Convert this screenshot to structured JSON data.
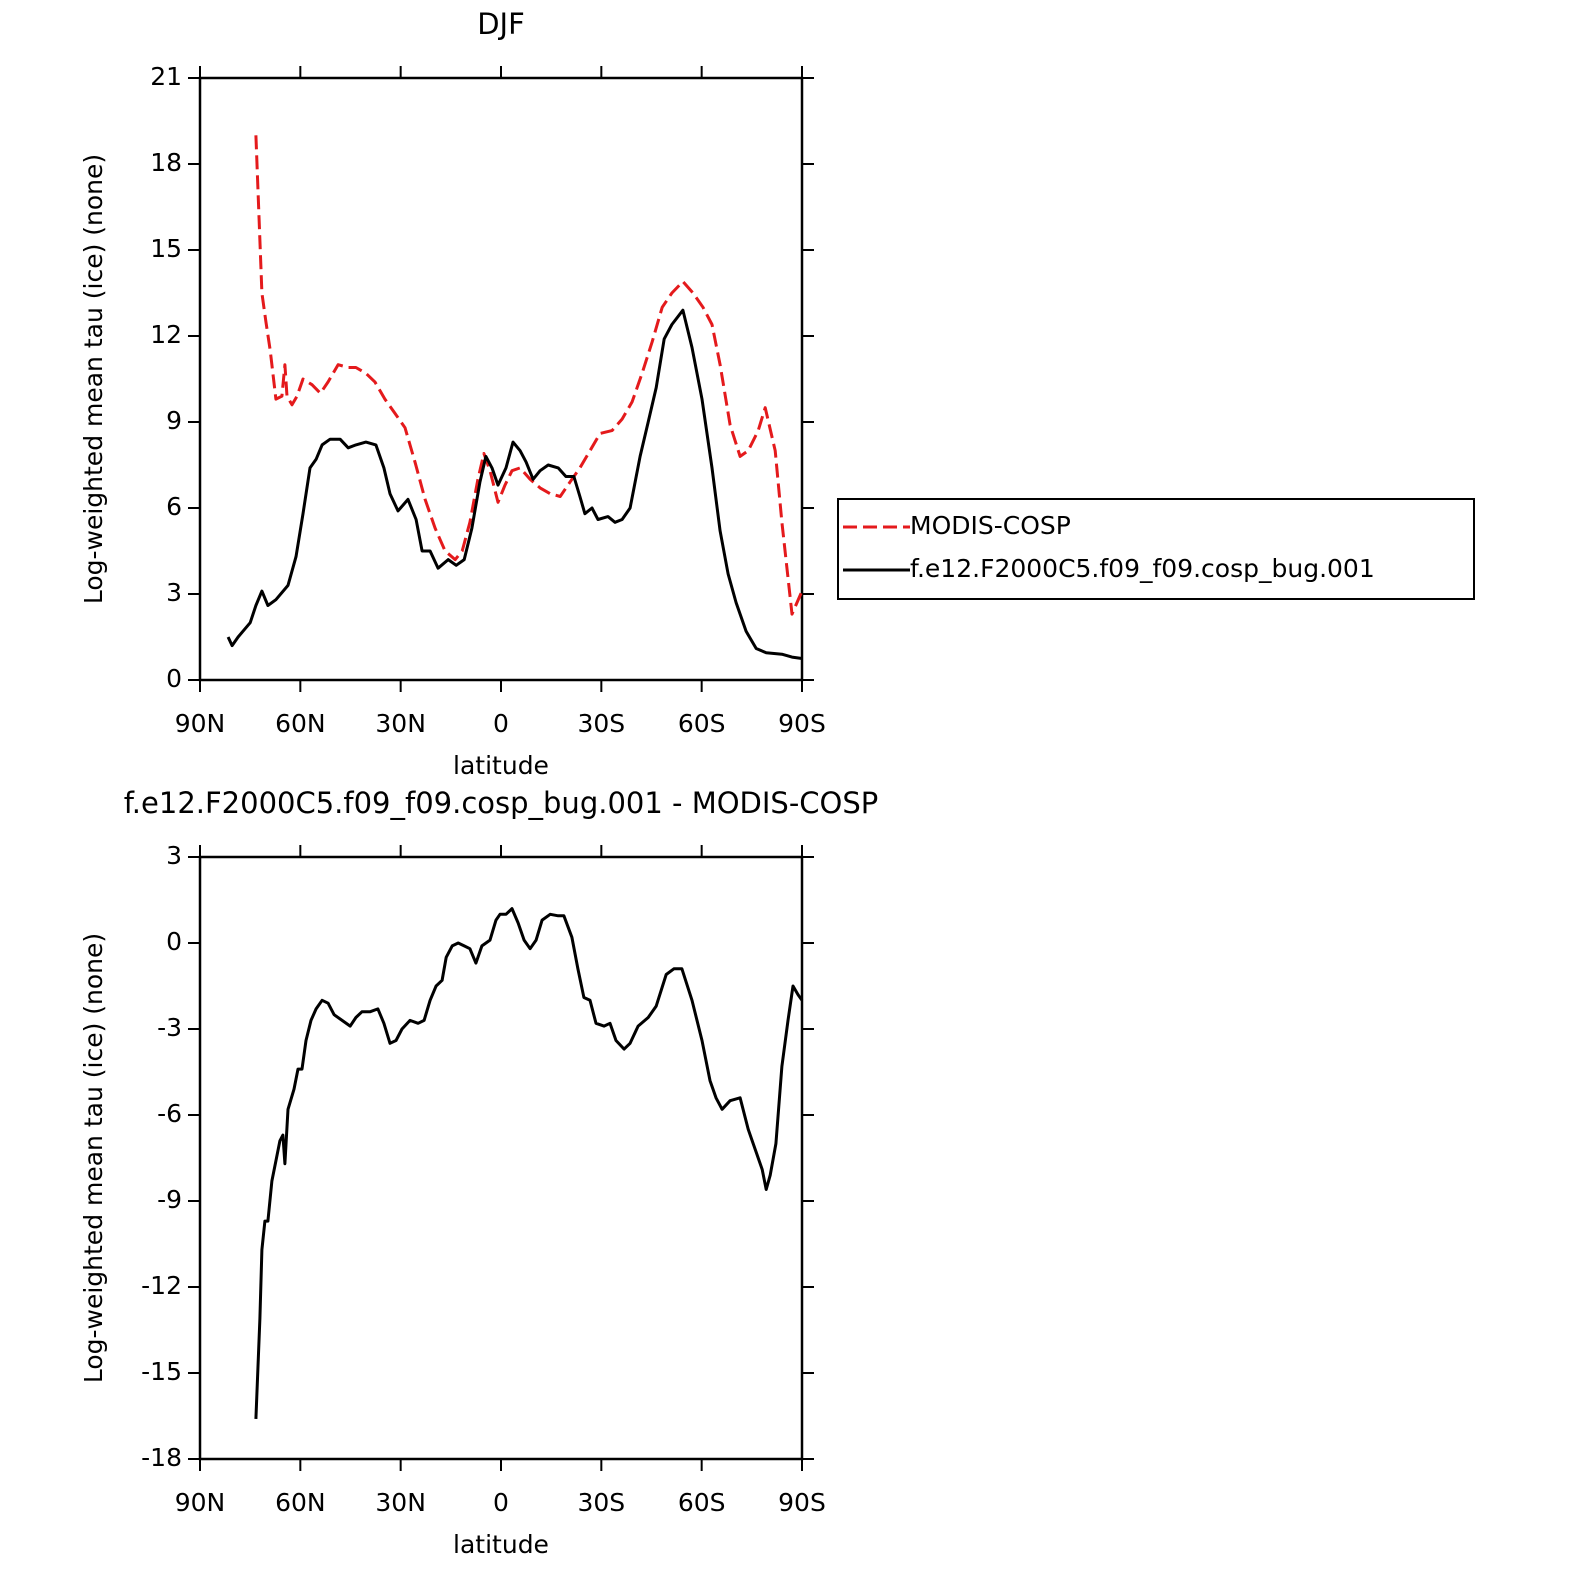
{
  "chart_data": [
    {
      "type": "line",
      "title": "DJF",
      "xlabel": "latitude",
      "ylabel": "Log-weighted mean tau (ice) (none)",
      "xlim": [
        90,
        -90
      ],
      "xticks": [
        {
          "value": 90,
          "label": "90N"
        },
        {
          "value": 60,
          "label": "60N"
        },
        {
          "value": 30,
          "label": "30N"
        },
        0,
        {
          "value": -30,
          "label": "30S"
        },
        {
          "value": -60,
          "label": "60S"
        },
        {
          "value": -90,
          "label": "90S"
        }
      ],
      "ylim": [
        0,
        21
      ],
      "yticks": [
        0,
        3,
        6,
        9,
        12,
        15,
        18,
        21
      ],
      "legend": "right",
      "series": [
        {
          "name": "MODIS-COSP",
          "color": "#e41a1c",
          "linestyle": "dashed",
          "x": [
            73.3,
            71.5,
            70.3,
            69,
            67.3,
            65.5,
            64.6,
            64,
            62.5,
            61,
            59.2,
            56.5,
            54,
            51.7,
            48.7,
            45.7,
            43.4,
            40.4,
            37.7,
            34.7,
            31.7,
            28.7,
            25.7,
            22.7,
            19.7,
            16.7,
            13.7,
            11.6,
            9.3,
            6.9,
            5.1,
            3.3,
            0.9,
            -1.2,
            -3.3,
            -5.7,
            -8.7,
            -11.7,
            -14.7,
            -17.7,
            -20.6,
            -23.6,
            -26.6,
            -29.6,
            -33.2,
            -36.2,
            -39.2,
            -42.2,
            -45.2,
            -48.2,
            -51.1,
            -54.4,
            -57.4,
            -60.4,
            -63.1,
            -65.5,
            -68.5,
            -71.5,
            -73.9,
            -76.9,
            -79,
            -82,
            -84,
            -87,
            -90
          ],
          "values": [
            19.0,
            13.5,
            12.5,
            11.5,
            9.8,
            9.9,
            11.0,
            9.9,
            9.6,
            9.9,
            10.5,
            10.3,
            10.0,
            10.4,
            11.0,
            10.9,
            10.9,
            10.7,
            10.4,
            9.8,
            9.3,
            8.8,
            7.6,
            6.3,
            5.3,
            4.5,
            4.2,
            4.5,
            5.5,
            7.0,
            7.9,
            7.3,
            6.2,
            6.8,
            7.3,
            7.4,
            7.0,
            6.7,
            6.5,
            6.4,
            6.9,
            7.4,
            8.0,
            8.6,
            8.7,
            9.1,
            9.7,
            10.7,
            11.8,
            13.0,
            13.5,
            13.9,
            13.5,
            13.0,
            12.4,
            11.0,
            8.9,
            7.8,
            8.0,
            8.7,
            9.5,
            8.0,
            5.5,
            2.3,
            3.1
          ]
        },
        {
          "name": "f.e12.F2000C5.f09_f09.cosp_bug.001",
          "color": "#000000",
          "linestyle": "solid",
          "x": [
            81.6,
            80.4,
            78.6,
            75,
            73.3,
            71.5,
            69.7,
            67.3,
            63.7,
            61.3,
            59.2,
            57.1,
            55.3,
            53.5,
            51.1,
            48.1,
            45.7,
            43.4,
            40.4,
            37.4,
            35,
            33.2,
            30.8,
            27.8,
            25.4,
            23.6,
            21.2,
            18.8,
            15.8,
            13.4,
            11,
            8.7,
            6.3,
            4.5,
            2.7,
            0.9,
            -1.5,
            -3.6,
            -5.7,
            -7.5,
            -9.6,
            -11.7,
            -14.1,
            -17.1,
            -19.4,
            -21.8,
            -23.6,
            -25.1,
            -27.2,
            -29,
            -32,
            -34.1,
            -36.2,
            -38.6,
            -41.6,
            -44,
            -46.4,
            -48.8,
            -51.1,
            -54.4,
            -57.1,
            -60.1,
            -63.1,
            -65.5,
            -67.9,
            -70.3,
            -73.3,
            -76.3,
            -79.3,
            -84,
            -87,
            -90
          ],
          "values": [
            1.5,
            1.2,
            1.5,
            2.0,
            2.6,
            3.1,
            2.6,
            2.8,
            3.3,
            4.3,
            5.8,
            7.4,
            7.7,
            8.2,
            8.4,
            8.4,
            8.1,
            8.2,
            8.3,
            8.2,
            7.4,
            6.5,
            5.9,
            6.3,
            5.6,
            4.5,
            4.5,
            3.9,
            4.2,
            4.0,
            4.2,
            5.3,
            6.9,
            7.8,
            7.4,
            6.8,
            7.4,
            8.3,
            8.0,
            7.6,
            7.0,
            7.3,
            7.5,
            7.4,
            7.1,
            7.1,
            6.4,
            5.8,
            6.0,
            5.6,
            5.7,
            5.5,
            5.6,
            6.0,
            7.8,
            9.0,
            10.2,
            11.9,
            12.4,
            12.9,
            11.6,
            9.8,
            7.4,
            5.2,
            3.7,
            2.7,
            1.7,
            1.1,
            0.95,
            0.9,
            0.8,
            0.75
          ]
        }
      ]
    },
    {
      "type": "line",
      "title": "f.e12.F2000C5.f09_f09.cosp_bug.001 - MODIS-COSP",
      "xlabel": "latitude",
      "ylabel": "Log-weighted mean tau (ice) (none)",
      "xlim": [
        90,
        -90
      ],
      "xticks": [
        {
          "value": 90,
          "label": "90N"
        },
        {
          "value": 60,
          "label": "60N"
        },
        {
          "value": 30,
          "label": "30N"
        },
        0,
        {
          "value": -30,
          "label": "30S"
        },
        {
          "value": -60,
          "label": "60S"
        },
        {
          "value": -90,
          "label": "90S"
        }
      ],
      "ylim": [
        -18,
        3
      ],
      "yticks": [
        -18,
        -15,
        -12,
        -9,
        -6,
        -3,
        0,
        3
      ],
      "series": [
        {
          "color": "#000000",
          "linestyle": "solid",
          "x": [
            73.3,
            72.1,
            71.5,
            70.6,
            69.7,
            68.5,
            67.3,
            66.1,
            65.2,
            64.6,
            63.7,
            61.9,
            60.7,
            59.5,
            58.3,
            56.8,
            55.3,
            53.5,
            51.7,
            49.9,
            47.5,
            45.1,
            43.4,
            41.6,
            39.2,
            36.8,
            35,
            33.2,
            31.4,
            29.6,
            27.2,
            24.8,
            23,
            21.2,
            19.4,
            17.6,
            16.4,
            14.6,
            12.8,
            11,
            9.3,
            7.5,
            5.7,
            3.3,
            1.5,
            0.3,
            -1.5,
            -3.3,
            -5.1,
            -6.9,
            -8.7,
            -10.5,
            -12.3,
            -14.7,
            -17.1,
            -18.8,
            -21.2,
            -23,
            -24.8,
            -26.6,
            -28.4,
            -30.8,
            -32.6,
            -34.4,
            -36.8,
            -38.6,
            -41,
            -44,
            -46.4,
            -49.4,
            -51.7,
            -54.1,
            -57.1,
            -60.1,
            -62.5,
            -64.3,
            -66.1,
            -68.5,
            -71.5,
            -73.9,
            -76.3,
            -78.1,
            -79.3,
            -80.5,
            -82.2,
            -84,
            -85.8,
            -87.3,
            -88.8,
            -90
          ],
          "values": [
            -16.6,
            -13.1,
            -10.7,
            -9.7,
            -9.7,
            -8.3,
            -7.6,
            -6.9,
            -6.7,
            -7.7,
            -5.8,
            -5.1,
            -4.4,
            -4.4,
            -3.4,
            -2.7,
            -2.3,
            -2.0,
            -2.1,
            -2.5,
            -2.7,
            -2.9,
            -2.6,
            -2.4,
            -2.4,
            -2.3,
            -2.8,
            -3.5,
            -3.4,
            -3.0,
            -2.7,
            -2.8,
            -2.7,
            -2.0,
            -1.5,
            -1.3,
            -0.5,
            -0.1,
            0.0,
            -0.1,
            -0.2,
            -0.7,
            -0.1,
            0.1,
            0.8,
            1.0,
            1.0,
            1.2,
            0.7,
            0.1,
            -0.2,
            0.1,
            0.8,
            1.0,
            0.95,
            0.95,
            0.2,
            -0.9,
            -1.9,
            -2.0,
            -2.8,
            -2.9,
            -2.8,
            -3.4,
            -3.7,
            -3.5,
            -2.9,
            -2.6,
            -2.2,
            -1.1,
            -0.9,
            -0.9,
            -2.0,
            -3.4,
            -4.8,
            -5.4,
            -5.8,
            -5.5,
            -5.4,
            -6.5,
            -7.3,
            -7.9,
            -8.6,
            -8.1,
            -7.0,
            -4.3,
            -2.7,
            -1.5,
            -1.8,
            -2.0
          ]
        }
      ]
    }
  ]
}
